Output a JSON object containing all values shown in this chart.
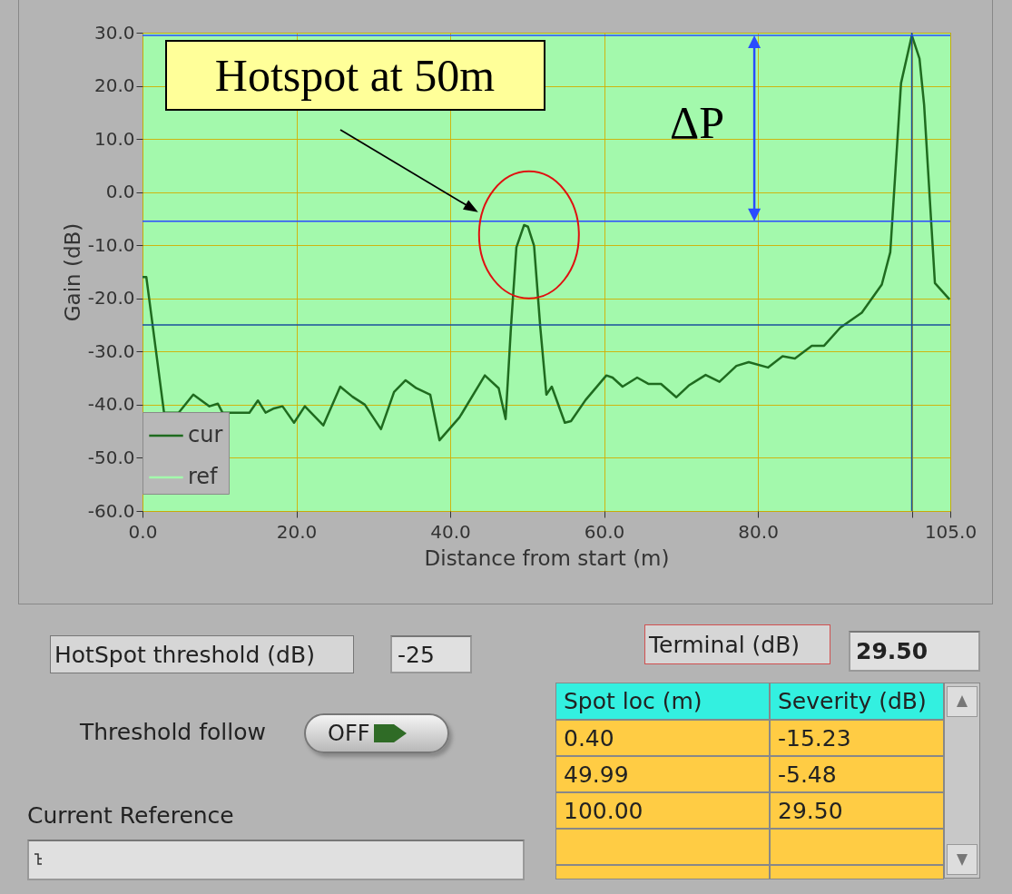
{
  "chart_data": [
    {
      "type": "line",
      "xlabel": "Distance from start (m)",
      "ylabel": "Gain (dB)",
      "xlim": [
        0,
        105
      ],
      "ylim": [
        -60,
        30
      ],
      "xticks": [
        {
          "value": 0,
          "label": "0.0"
        },
        {
          "value": 20,
          "label": "20.0"
        },
        {
          "value": 40,
          "label": "40.0"
        },
        {
          "value": 60,
          "label": "60.0"
        },
        {
          "value": 80,
          "label": "80.0"
        },
        {
          "value": 100,
          "label": null
        },
        {
          "value": 105,
          "label": "105.0"
        }
      ],
      "yticks": [
        {
          "value": -60,
          "label": "-60.0"
        },
        {
          "value": -50,
          "label": "-50.0"
        },
        {
          "value": -40,
          "label": "-40.0"
        },
        {
          "value": -30,
          "label": "-30.0"
        },
        {
          "value": -20,
          "label": "-20.0"
        },
        {
          "value": -10,
          "label": "-10.0"
        },
        {
          "value": 0,
          "label": "0.0"
        },
        {
          "value": 10,
          "label": "10.0"
        },
        {
          "value": 20,
          "label": "20.0"
        },
        {
          "value": 30,
          "label": "30.0"
        }
      ],
      "grid": true,
      "legend": "bottom left",
      "series": [
        {
          "name": "cur",
          "color": "#1f6b1f",
          "x": [
            0,
            0.5,
            2.8,
            4.7,
            6.6,
            8.7,
            9.8,
            10.4,
            13.9,
            15.0,
            16.0,
            17.1,
            18.2,
            19.7,
            21.1,
            23.5,
            25.7,
            27.3,
            28.9,
            31,
            32.7,
            34.2,
            35.6,
            37.4,
            38.6,
            41.2,
            44.5,
            46.3,
            47.2,
            47.9,
            48.6,
            49.6,
            50.1,
            50.9,
            51.7,
            52.5,
            53.2,
            54.9,
            55.7,
            57.6,
            60.3,
            61.1,
            62.4,
            64.3,
            65.8,
            67.4,
            69.4,
            71.0,
            73.2,
            75.0,
            77.2,
            78.8,
            81.3,
            83.2,
            84.8,
            87.0,
            88.6,
            90.7,
            93.5,
            96.1,
            97.2,
            98.6,
            100,
            101.0,
            101.6,
            103.0,
            104.9
          ],
          "values": [
            -16,
            -16,
            -41.5,
            -41.5,
            -38.1,
            -40.3,
            -39.8,
            -41.5,
            -41.5,
            -39.2,
            -41.5,
            -40.7,
            -40.3,
            -43.4,
            -40.3,
            -43.9,
            -36.6,
            -38.5,
            -40,
            -44.6,
            -37.6,
            -35.4,
            -36.9,
            -38.1,
            -46.7,
            -42.4,
            -34.5,
            -36.9,
            -42.7,
            -25.3,
            -10.4,
            -6.2,
            -6.5,
            -10.1,
            -25.3,
            -38.1,
            -36.6,
            -43.4,
            -43.1,
            -39.1,
            -34.5,
            -34.9,
            -36.6,
            -34.9,
            -36.1,
            -36.1,
            -38.6,
            -36.4,
            -34.4,
            -35.7,
            -32.7,
            -32.0,
            -33.0,
            -30.9,
            -31.3,
            -28.9,
            -28.9,
            -25.5,
            -22.7,
            -17.4,
            -11.3,
            20.5,
            29.5,
            25.1,
            16.4,
            -17.1,
            -20.2
          ]
        },
        {
          "name": "ref",
          "color": "#a3f9ac"
        }
      ],
      "ref_lines": [
        {
          "axis": "y",
          "value": -25,
          "color": "#1a4f9c"
        },
        {
          "axis": "x",
          "value": 100,
          "color": "#1a4f9c"
        },
        {
          "axis": "y",
          "value": 29.5,
          "color": "#2a4cff"
        },
        {
          "axis": "y",
          "value": -5.48,
          "color": "#2a4cff"
        }
      ],
      "annotations": [
        {
          "text": "Hotspot at 50m",
          "x": 50,
          "y": -5.48
        },
        "ΔP"
      ]
    },
    {
      "type": "other",
      "annotations": [
        "HotSpot threshold (dB)",
        "-25",
        "Terminal (dB)",
        "29.50",
        "Threshold follow",
        "OFF",
        "Current Reference",
        "Spot loc (m)",
        "Severity (dB)",
        "0.40",
        "-15.23",
        "49.99",
        "-5.48",
        "100.00",
        "29.50"
      ]
    }
  ]
}
